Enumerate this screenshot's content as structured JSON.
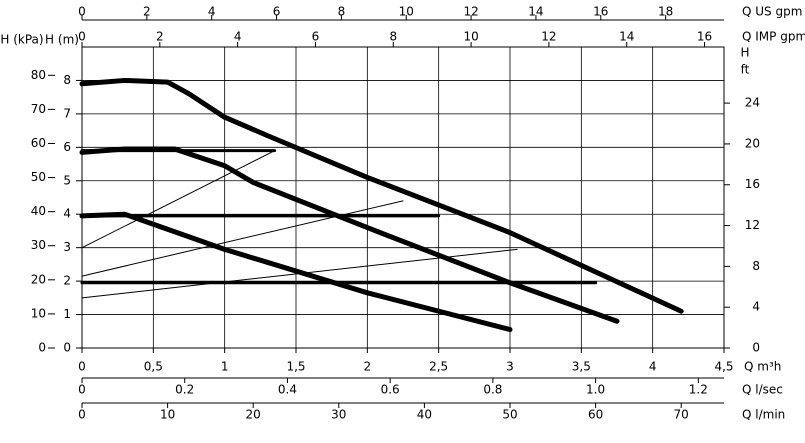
{
  "chart_data": {
    "type": "line",
    "x_label": "Q m³h",
    "xlim": [
      0,
      4.5
    ],
    "xticks": [
      0,
      {
        "value": 0.5,
        "label": "0,5"
      },
      1,
      {
        "value": 1.5,
        "label": "1,5"
      },
      2,
      {
        "value": 2.5,
        "label": "2,5"
      },
      3,
      {
        "value": 3.5,
        "label": "3,5"
      },
      4,
      {
        "value": 4.5,
        "label": "4,5"
      }
    ],
    "y_label": "H (m)",
    "ylim": [
      0,
      9
    ],
    "yticks": [
      0,
      1,
      2,
      3,
      4,
      5,
      6,
      7,
      8
    ],
    "grid": true,
    "y_kpa": {
      "label": "H (kPa)",
      "lim": [
        0,
        88.3
      ],
      "ticks": [
        0,
        10,
        20,
        30,
        40,
        50,
        60,
        70,
        80
      ]
    },
    "y_ft": {
      "label": "H",
      "unit": "ft",
      "lim": [
        0,
        29.5
      ],
      "ticks": [
        0,
        4,
        8,
        12,
        16,
        20,
        24
      ]
    },
    "x_us_gpm": {
      "label": "Q US gpm",
      "lim": [
        0,
        19.8
      ],
      "ticks": [
        0,
        2,
        4,
        6,
        8,
        10,
        12,
        14,
        16,
        18
      ]
    },
    "x_imp_gpm": {
      "label": "Q IMP gpm",
      "lim": [
        0,
        16.5
      ],
      "ticks": [
        0,
        2,
        4,
        6,
        8,
        10,
        12,
        14,
        16
      ]
    },
    "x_l_sec": {
      "label": "Q l/sec",
      "lim": [
        0,
        1.25
      ],
      "ticks": [
        0,
        0.2,
        0.4,
        0.6,
        0.8,
        {
          "value": 1.0,
          "label": "1.0"
        },
        1.2
      ]
    },
    "x_l_min": {
      "label": "Q l/min",
      "lim": [
        0,
        75
      ],
      "ticks": [
        0,
        10,
        20,
        30,
        40,
        50,
        60,
        70
      ]
    },
    "series": [
      {
        "color": "#000000",
        "x": [
          0,
          0.3,
          0.6,
          0.75,
          1,
          1.3,
          2,
          3,
          4.2
        ],
        "values": [
          7.9,
          8.0,
          7.95,
          7.6,
          6.9,
          6.35,
          5.1,
          3.45,
          1.1
        ]
      },
      {
        "color": "#000000",
        "x": [
          0,
          0.3,
          0.65,
          1,
          1.2,
          2,
          3,
          3.75
        ],
        "values": [
          5.85,
          5.95,
          5.95,
          5.45,
          4.95,
          3.6,
          1.95,
          0.8
        ]
      },
      {
        "color": "#000000",
        "x": [
          0,
          0.3,
          0.5,
          1,
          2,
          3
        ],
        "values": [
          3.95,
          4.0,
          3.7,
          2.95,
          1.65,
          0.55
        ]
      },
      {
        "color": "#000000",
        "x": [
          0,
          1.35
        ],
        "values": [
          5.9,
          5.9
        ]
      },
      {
        "color": "#000000",
        "x": [
          0,
          2.5
        ],
        "values": [
          3.95,
          3.95
        ]
      },
      {
        "color": "#000000",
        "x": [
          0,
          3.6
        ],
        "values": [
          1.95,
          1.95
        ]
      },
      {
        "color": "#000000",
        "x": [
          0,
          1.35
        ],
        "values": [
          3.0,
          5.9
        ]
      },
      {
        "color": "#000000",
        "x": [
          0,
          2.25
        ],
        "values": [
          2.15,
          4.4
        ]
      },
      {
        "color": "#000000",
        "x": [
          0,
          3.05
        ],
        "values": [
          1.5,
          2.95
        ]
      }
    ]
  }
}
